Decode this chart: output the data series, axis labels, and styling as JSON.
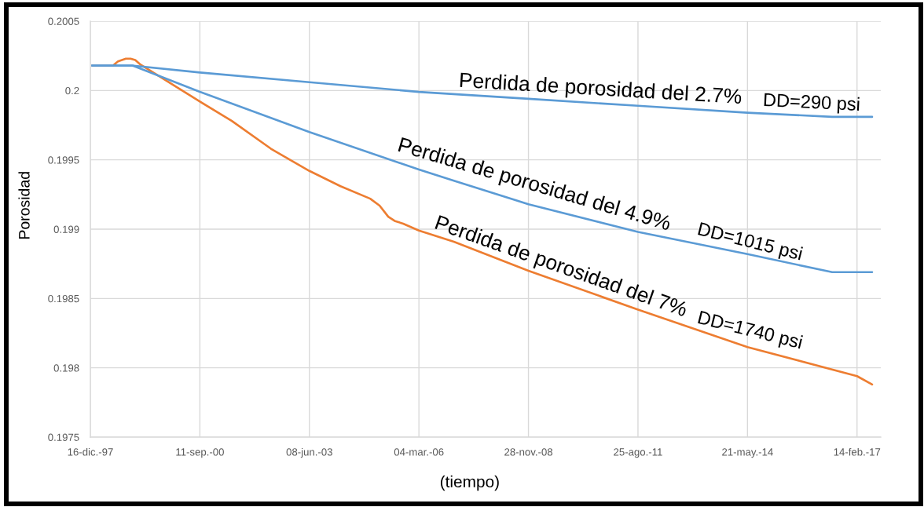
{
  "chart_data": {
    "type": "line",
    "xlabel": "(tiempo)",
    "ylabel": "Porosidad",
    "xlim": [
      "1997-12-16",
      "2017-09-19"
    ],
    "xticks": [
      {
        "value": "1997-12-16",
        "label": "16-dic.-97"
      },
      {
        "value": "2000-09-11",
        "label": "11-sep.-00"
      },
      {
        "value": "2003-06-08",
        "label": "08-jun.-03"
      },
      {
        "value": "2006-03-04",
        "label": "04-mar.-06"
      },
      {
        "value": "2008-11-28",
        "label": "28-nov.-08"
      },
      {
        "value": "2011-08-25",
        "label": "25-ago.-11"
      },
      {
        "value": "2014-05-21",
        "label": "21-may.-14"
      },
      {
        "value": "2017-02-14",
        "label": "14-feb.-17"
      }
    ],
    "ylim": [
      0.1975,
      0.2005
    ],
    "yticks": [
      0.1975,
      0.198,
      0.1985,
      0.199,
      0.1995,
      0.2,
      0.2005
    ],
    "grid": true,
    "line_style": "solid",
    "series": [
      {
        "color": "#ed7d31",
        "x": [
          "1998-01-01",
          "1998-07-11",
          "1998-08-25",
          "1998-11-05",
          "1998-12-18",
          "1999-01-30",
          "1999-03-14",
          "2000-09-11",
          "2001-06-30",
          "2002-06-22",
          "2003-06-08",
          "2004-03-18",
          "2004-12-14",
          "2005-03-10",
          "2005-05-28",
          "2005-07-25",
          "2005-10-11",
          "2006-03-04",
          "2007-01-17",
          "2008-11-28",
          "2011-08-25",
          "2014-05-21",
          "2017-02-14",
          "2017-07-02"
        ],
        "values": [
          0.20018,
          0.20018,
          0.20021,
          0.20023,
          0.20023,
          0.20022,
          0.20019,
          0.19992,
          0.19978,
          0.19958,
          0.19942,
          0.19931,
          0.19922,
          0.19917,
          0.19909,
          0.19906,
          0.19904,
          0.19899,
          0.19891,
          0.1987,
          0.19842,
          0.19815,
          0.19794,
          0.19788
        ]
      },
      {
        "color": "#5b9bd5",
        "x": [
          "1998-01-01",
          "1999-01-05",
          "2000-09-11",
          "2003-06-08",
          "2006-03-04",
          "2007-01-17",
          "2008-11-28",
          "2011-08-25",
          "2014-05-21",
          "2016-07-02",
          "2017-07-02"
        ],
        "values": [
          0.20018,
          0.20018,
          0.19999,
          0.1997,
          0.19943,
          0.19935,
          0.19918,
          0.19898,
          0.19882,
          0.19869,
          0.19869
        ]
      },
      {
        "color": "#5b9bd5",
        "x": [
          "1998-01-01",
          "1998-12-29",
          "2000-09-11",
          "2003-06-08",
          "2006-03-04",
          "2008-11-28",
          "2011-08-25",
          "2014-05-21",
          "2016-07-02",
          "2017-07-02"
        ],
        "values": [
          0.20018,
          0.20018,
          0.20013,
          0.20006,
          0.19999,
          0.19994,
          0.19989,
          0.19984,
          0.19981,
          0.19981
        ]
      }
    ],
    "annotations": [
      {
        "text": "Perdida de porosidad del 2.7%",
        "x": "2010-09-15",
        "y": 0.19991
      },
      {
        "text": "DD=290 psi",
        "x": "2015-12-27",
        "y": 0.19982
      },
      {
        "text": "Perdida de porosidad del 4.9%",
        "x": "2009-01-17",
        "y": 0.19917
      },
      {
        "text": "DD=1015 psi",
        "x": "2014-06-11",
        "y": 0.19882
      },
      {
        "text": "Perdida de porosidad del 7%",
        "x": "2009-09-17",
        "y": 0.19863
      },
      {
        "text": "DD=1740 psi",
        "x": "2014-06-11",
        "y": 0.19815
      }
    ]
  }
}
